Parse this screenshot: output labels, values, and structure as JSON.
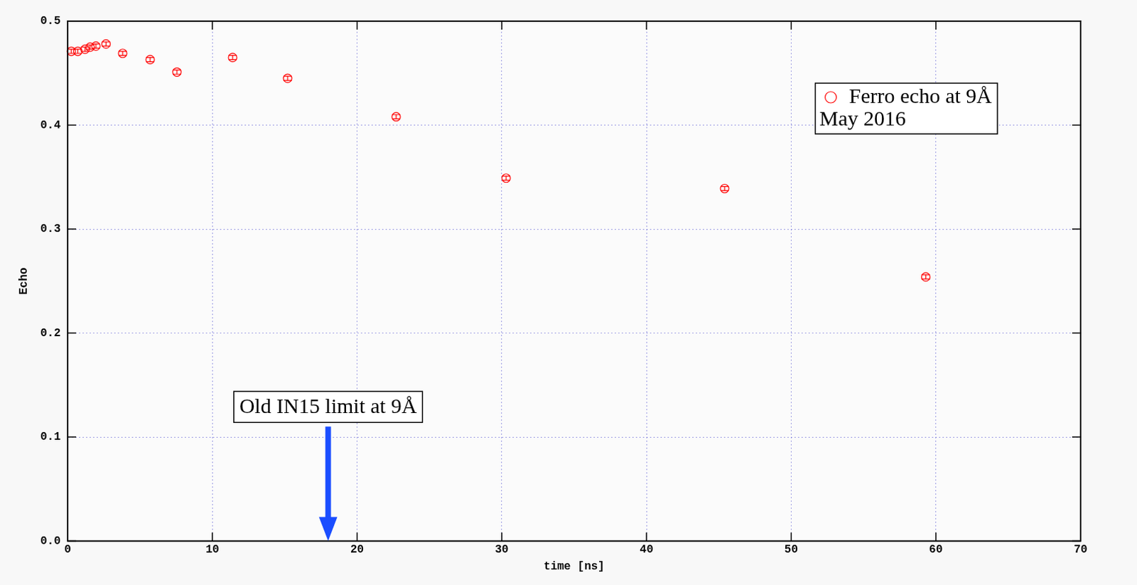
{
  "chart_data": {
    "type": "scatter",
    "x_label": "time [ns]",
    "y_label": "Echo",
    "xlim": [
      0,
      70
    ],
    "xticks": [
      0,
      10,
      20,
      30,
      40,
      50,
      60,
      70
    ],
    "ylim": [
      0,
      0.5
    ],
    "yticks": [
      {
        "value": 0,
        "label": "0.0"
      },
      0.1,
      0.2,
      0.3,
      0.4,
      0.5
    ],
    "grid": true,
    "legend": "upper right",
    "legend_note": "May 2016",
    "series": [
      {
        "name": "Ferro echo at 9Å",
        "color": "#ff0000",
        "marker": "open circle",
        "x": [
          0.25,
          0.7,
          1.2,
          1.55,
          1.95,
          2.65,
          3.8,
          5.7,
          7.55,
          11.4,
          15.2,
          22.7,
          30.3,
          45.4,
          59.3
        ],
        "values": [
          0.471,
          0.471,
          0.473,
          0.475,
          0.476,
          0.478,
          0.469,
          0.463,
          0.451,
          0.465,
          0.445,
          0.408,
          0.349,
          0.339,
          0.254
        ],
        "errors": [
          0.002,
          0.002,
          0.002,
          0.002,
          0.002,
          0.002,
          0.002,
          0.002,
          0.002,
          0.002,
          0.002,
          0.002,
          0.002,
          0.002,
          0.002
        ]
      }
    ],
    "annotations": [
      {
        "text": "Old IN15 limit at 9Å",
        "x": 18,
        "y": 0.11
      }
    ]
  }
}
